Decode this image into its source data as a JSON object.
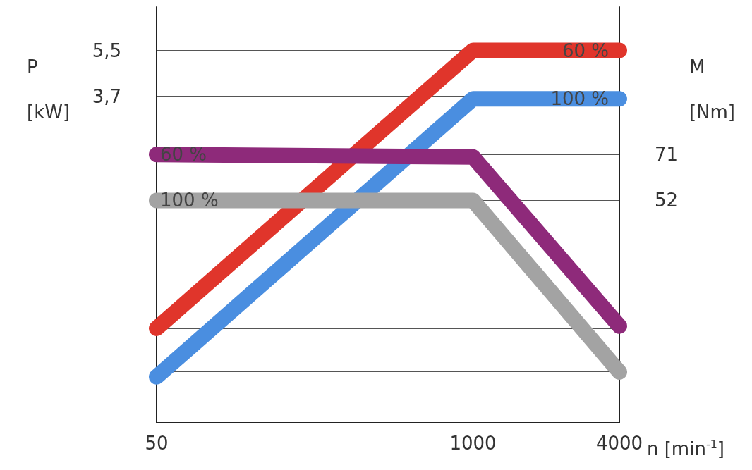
{
  "chart_data": {
    "type": "line",
    "xlabel": "n [min$^{-1}$]",
    "ylabel": "P\n[kW]",
    "y2label": "M\n[Nm]",
    "x": [
      50,
      1000,
      4000
    ],
    "log": "x",
    "xlim": [
      50,
      4000
    ],
    "xticks": [
      50,
      1000,
      4000
    ],
    "ylim": [
      -9.1,
      7.2
    ],
    "yticks": [
      {
        "value": -7.1,
        "label": null
      },
      {
        "value": -5.4,
        "label": null
      },
      {
        "value": 3.7,
        "label": "3,7"
      },
      {
        "value": 5.5,
        "label": "5,5"
      }
    ],
    "y2lim": [
      -40,
      132
    ],
    "y2ticks": [
      52,
      71
    ],
    "grid": true,
    "legend": false,
    "marker": "none",
    "line_style": "solid",
    "series": [
      {
        "name": "60 %",
        "color": "#e0352b",
        "values": [
          -5.4,
          5.5,
          5.5
        ]
      },
      {
        "name": "100 %",
        "color": "#4a8ee0",
        "values": [
          -7.3,
          3.6,
          3.6
        ]
      },
      {
        "name": "60 %",
        "color": "#8e2a7a",
        "axis": "y2",
        "values": [
          71,
          70,
          0
        ]
      },
      {
        "name": "100 %",
        "color": "#a3a3a3",
        "axis": "y2",
        "values": [
          52,
          52,
          -19
        ]
      }
    ]
  }
}
